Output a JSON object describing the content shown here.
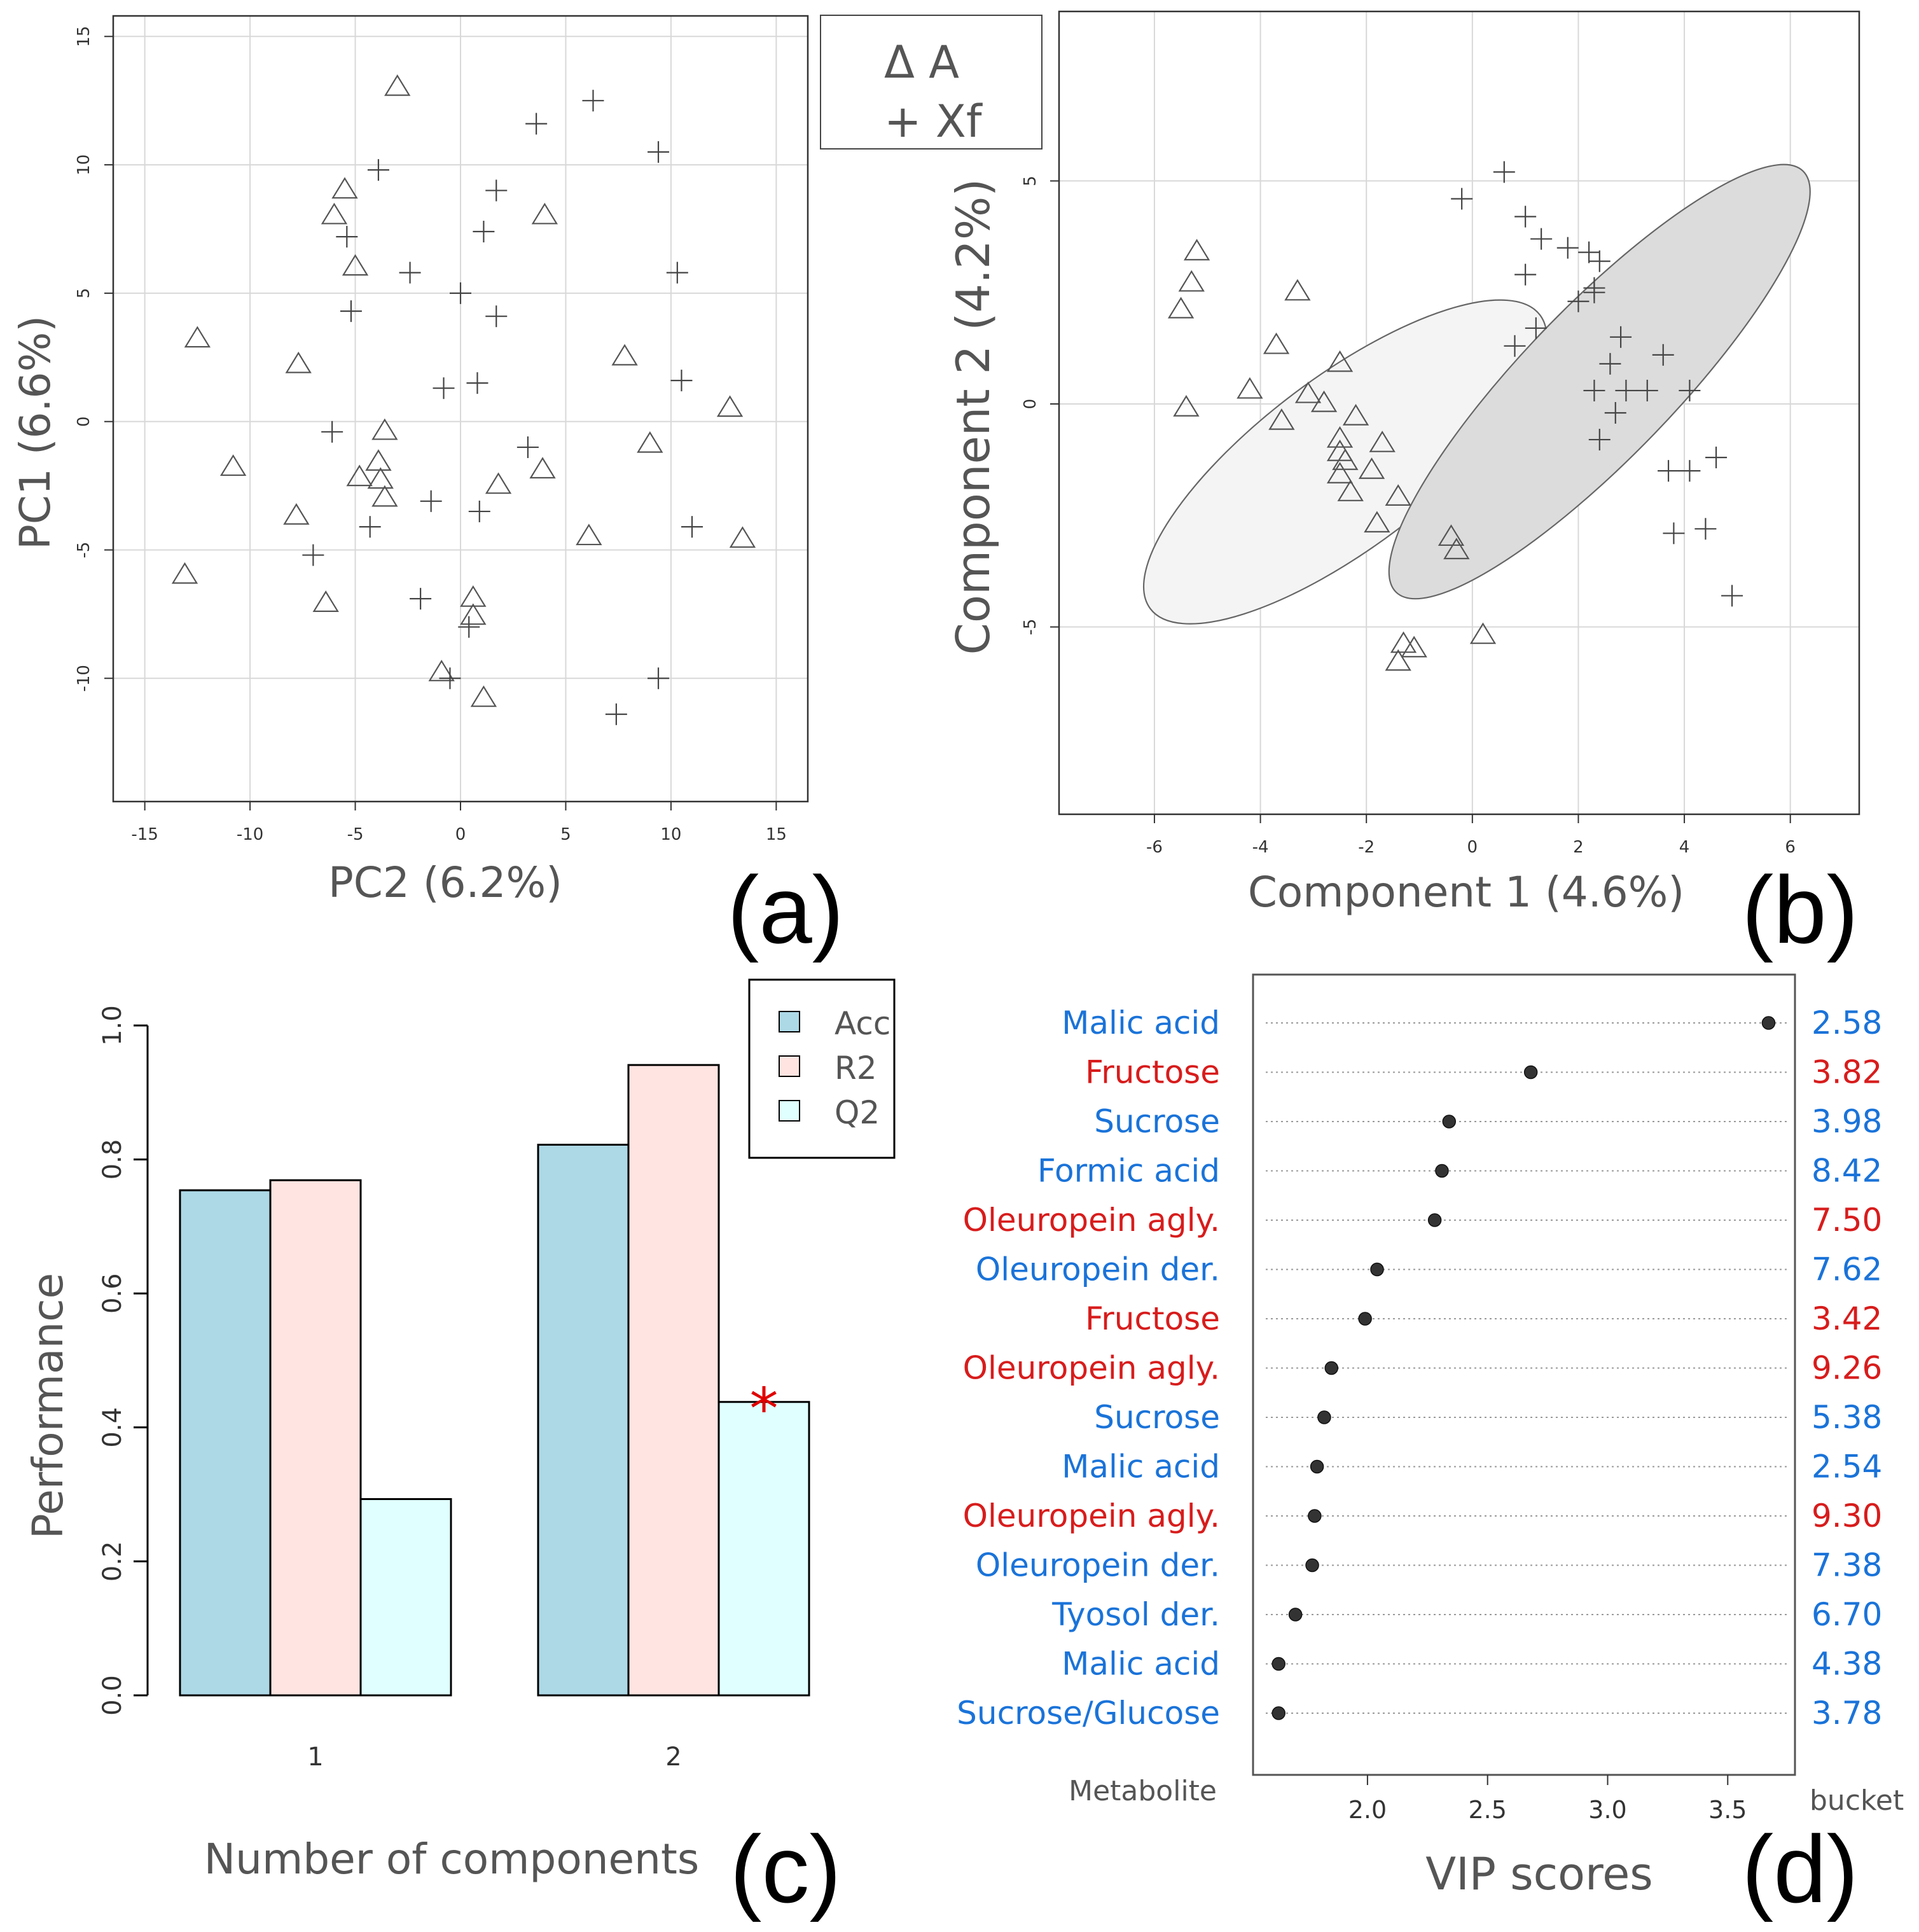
{
  "chart_data": [
    {
      "panel": "(a)",
      "type": "scatter",
      "xlabel": "PC2 (6.2%)",
      "ylabel": "PC1 (6.6%)",
      "xlim": [
        -16.5,
        16.5
      ],
      "ylim": [
        -14.8,
        15.8
      ],
      "xticks": [
        -15,
        -10,
        -5,
        0,
        5,
        10,
        15
      ],
      "yticks": [
        -10,
        -5,
        0,
        5,
        10,
        15
      ],
      "grid": true,
      "legend": {
        "position": "top-right",
        "entries": [
          "Δ A",
          "+ Xf"
        ]
      },
      "series": [
        {
          "name": "A",
          "marker": "triangle",
          "points": [
            [
              -3,
              13
            ],
            [
              -5.5,
              9
            ],
            [
              -6,
              8
            ],
            [
              -5,
              6
            ],
            [
              4,
              8
            ],
            [
              -12.5,
              3.2
            ],
            [
              -7.7,
              2.2
            ],
            [
              7.8,
              2.5
            ],
            [
              12.8,
              0.5
            ],
            [
              -10.8,
              -1.8
            ],
            [
              -3.6,
              -0.4
            ],
            [
              -3.9,
              -1.6
            ],
            [
              -3.8,
              -2.3
            ],
            [
              -4.8,
              -2.2
            ],
            [
              -3.6,
              -3
            ],
            [
              1.8,
              -2.5
            ],
            [
              3.9,
              -1.9
            ],
            [
              9,
              -0.9
            ],
            [
              -7.8,
              -3.7
            ],
            [
              6.1,
              -4.5
            ],
            [
              13.4,
              -4.6
            ],
            [
              -13.1,
              -6
            ],
            [
              -6.4,
              -7.1
            ],
            [
              0.6,
              -6.9
            ],
            [
              0.6,
              -7.6
            ],
            [
              -0.9,
              -9.8
            ],
            [
              1.1,
              -10.8
            ]
          ]
        },
        {
          "name": "Xf",
          "marker": "plus",
          "points": [
            [
              6.3,
              12.5
            ],
            [
              3.6,
              11.6
            ],
            [
              9.4,
              10.5
            ],
            [
              -3.9,
              9.8
            ],
            [
              1.7,
              9
            ],
            [
              1.1,
              7.4
            ],
            [
              -5.4,
              7.2
            ],
            [
              -2.4,
              5.8
            ],
            [
              10.3,
              5.8
            ],
            [
              0,
              5
            ],
            [
              -5.2,
              4.3
            ],
            [
              1.7,
              4.1
            ],
            [
              -0.8,
              1.3
            ],
            [
              0.8,
              1.5
            ],
            [
              10.5,
              1.6
            ],
            [
              -6.1,
              -0.4
            ],
            [
              3.2,
              -1
            ],
            [
              -1.4,
              -3.1
            ],
            [
              0.9,
              -3.5
            ],
            [
              -4.3,
              -4.1
            ],
            [
              11,
              -4.1
            ],
            [
              -7,
              -5.2
            ],
            [
              -1.9,
              -6.9
            ],
            [
              0.4,
              -8
            ],
            [
              -0.5,
              -10
            ],
            [
              9.4,
              -10
            ],
            [
              7.4,
              -11.4
            ]
          ]
        }
      ]
    },
    {
      "panel": "(b)",
      "type": "scatter",
      "xlabel": "Component 1 (4.6%)",
      "ylabel": "Component 2 (4.2%)",
      "xlim": [
        -7.8,
        7.3
      ],
      "ylim": [
        -9.2,
        8.8
      ],
      "xticks": [
        -6,
        -4,
        -2,
        0,
        2,
        4,
        6
      ],
      "yticks": [
        -5,
        0,
        5
      ],
      "grid": true,
      "ellipses": [
        {
          "group": "A",
          "center": [
            -2.4,
            -1.3
          ],
          "rx": 5.0,
          "ry": 1.75,
          "angle_deg": 37,
          "fill": "#f4f4f4"
        },
        {
          "group": "Xf",
          "center": [
            2.4,
            0.5
          ],
          "rx": 6.0,
          "ry": 1.55,
          "angle_deg": 46,
          "fill": "#dcdcdc"
        }
      ],
      "series": [
        {
          "name": "A",
          "marker": "triangle",
          "points": [
            [
              -5.2,
              3.4
            ],
            [
              -5.3,
              2.7
            ],
            [
              -5.5,
              2.1
            ],
            [
              -5.4,
              -0.1
            ],
            [
              -4.2,
              0.3
            ],
            [
              -3.7,
              1.3
            ],
            [
              -3.3,
              2.5
            ],
            [
              -3.1,
              0.2
            ],
            [
              -3.6,
              -0.4
            ],
            [
              -2.8,
              0
            ],
            [
              -2.5,
              0.9
            ],
            [
              -2.5,
              -0.8
            ],
            [
              -2.5,
              -1.1
            ],
            [
              -2.4,
              -1.3
            ],
            [
              -2.2,
              -0.3
            ],
            [
              -1.9,
              -1.5
            ],
            [
              -1.7,
              -0.9
            ],
            [
              -2.5,
              -1.6
            ],
            [
              -2.3,
              -2
            ],
            [
              -1.4,
              -2.1
            ],
            [
              -1.8,
              -2.7
            ],
            [
              -0.4,
              -3
            ],
            [
              -0.3,
              -3.3
            ],
            [
              0.2,
              -5.2
            ],
            [
              -1.3,
              -5.4
            ],
            [
              -1.1,
              -5.5
            ],
            [
              -1.4,
              -5.8
            ]
          ]
        },
        {
          "name": "Xf",
          "marker": "plus",
          "points": [
            [
              -0.2,
              4.6
            ],
            [
              0.6,
              5.2
            ],
            [
              1,
              4.2
            ],
            [
              1.3,
              3.7
            ],
            [
              1.8,
              3.5
            ],
            [
              2.2,
              3.4
            ],
            [
              2.4,
              3.2
            ],
            [
              1,
              2.9
            ],
            [
              2.3,
              2.6
            ],
            [
              2.3,
              2.5
            ],
            [
              2,
              2.3
            ],
            [
              1.2,
              1.7
            ],
            [
              0.8,
              1.3
            ],
            [
              2.8,
              1.5
            ],
            [
              2.6,
              0.9
            ],
            [
              3.6,
              1.1
            ],
            [
              2.3,
              0.3
            ],
            [
              2.9,
              0.3
            ],
            [
              3.3,
              0.3
            ],
            [
              4.1,
              0.3
            ],
            [
              2.7,
              -0.2
            ],
            [
              2.4,
              -0.8
            ],
            [
              3.7,
              -1.5
            ],
            [
              4.1,
              -1.5
            ],
            [
              4.6,
              -1.2
            ],
            [
              4.4,
              -2.8
            ],
            [
              3.8,
              -2.9
            ],
            [
              4.9,
              -4.3
            ]
          ]
        }
      ]
    },
    {
      "panel": "(c)",
      "type": "bar",
      "xlabel": "Number of components",
      "ylabel": "Performance",
      "categories": [
        "1",
        "2"
      ],
      "ylim": [
        0,
        1.0
      ],
      "yticks": [
        "0.0",
        "0.2",
        "0.4",
        "0.6",
        "0.8",
        "1.0"
      ],
      "legend": {
        "position": "top-right",
        "entries": [
          "Acc",
          "R2",
          "Q2"
        ]
      },
      "colors": {
        "Acc": "#add8e6",
        "R2": "#ffe4e1",
        "Q2": "#e0ffff"
      },
      "series": [
        {
          "name": "Acc",
          "values": [
            0.754,
            0.822
          ]
        },
        {
          "name": "R2",
          "values": [
            0.769,
            0.941
          ]
        },
        {
          "name": "Q2",
          "values": [
            0.293,
            0.438
          ]
        }
      ],
      "annotation": {
        "text": "*",
        "category": "2",
        "series": "Q2",
        "color": "#e00000"
      }
    },
    {
      "panel": "(d)",
      "type": "dot",
      "xlabel": "VIP scores",
      "left_header": "Metabolite",
      "right_header": "bucket",
      "xlim": [
        1.55,
        3.78
      ],
      "xticks": [
        "2.0",
        "2.5",
        "3.0",
        "3.5"
      ],
      "label_colors": {
        "blue": "#1a73d9",
        "red": "#d81c1c"
      },
      "rows": [
        {
          "metabolite": "Malic acid",
          "bucket": "2.58",
          "vip": 3.67,
          "color": "blue"
        },
        {
          "metabolite": "Fructose",
          "bucket": "3.82",
          "vip": 2.68,
          "color": "red"
        },
        {
          "metabolite": "Sucrose",
          "bucket": "3.98",
          "vip": 2.34,
          "color": "blue"
        },
        {
          "metabolite": "Formic acid",
          "bucket": "8.42",
          "vip": 2.31,
          "color": "blue"
        },
        {
          "metabolite": "Oleuropein agly.",
          "bucket": "7.50",
          "vip": 2.28,
          "color": "red"
        },
        {
          "metabolite": "Oleuropein der.",
          "bucket": "7.62",
          "vip": 2.04,
          "color": "blue"
        },
        {
          "metabolite": "Fructose",
          "bucket": "3.42",
          "vip": 1.99,
          "color": "red"
        },
        {
          "metabolite": "Oleuropein agly.",
          "bucket": "9.26",
          "vip": 1.85,
          "color": "red"
        },
        {
          "metabolite": "Sucrose",
          "bucket": "5.38",
          "vip": 1.82,
          "color": "blue"
        },
        {
          "metabolite": "Malic acid",
          "bucket": "2.54",
          "vip": 1.79,
          "color": "blue"
        },
        {
          "metabolite": "Oleuropein agly.",
          "bucket": "9.30",
          "vip": 1.78,
          "color": "red"
        },
        {
          "metabolite": "Oleuropein der.",
          "bucket": "7.38",
          "vip": 1.77,
          "color": "blue"
        },
        {
          "metabolite": "Tyosol der.",
          "bucket": "6.70",
          "vip": 1.7,
          "color": "blue"
        },
        {
          "metabolite": "Malic acid",
          "bucket": "4.38",
          "vip": 1.63,
          "color": "blue"
        },
        {
          "metabolite": "Sucrose/Glucose",
          "bucket": "3.78",
          "vip": 1.63,
          "color": "blue"
        }
      ]
    }
  ]
}
